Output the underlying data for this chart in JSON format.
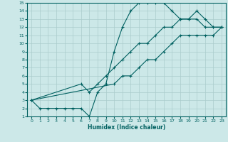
{
  "xlabel": "Humidex (Indice chaleur)",
  "xlim": [
    -0.5,
    23.5
  ],
  "ylim": [
    1,
    15
  ],
  "xticks": [
    0,
    1,
    2,
    3,
    4,
    5,
    6,
    7,
    8,
    9,
    10,
    11,
    12,
    13,
    14,
    15,
    16,
    17,
    18,
    19,
    20,
    21,
    22,
    23
  ],
  "yticks": [
    1,
    2,
    3,
    4,
    5,
    6,
    7,
    8,
    9,
    10,
    11,
    12,
    13,
    14,
    15
  ],
  "bg_color": "#cce8e8",
  "grid_color": "#aacccc",
  "line_color": "#006060",
  "line1_x": [
    0,
    1,
    2,
    3,
    4,
    5,
    6,
    7,
    8,
    9,
    10,
    11,
    12,
    13,
    14,
    15,
    16,
    17,
    18,
    19,
    20,
    21,
    22,
    23
  ],
  "line1_y": [
    3,
    2,
    2,
    2,
    2,
    2,
    2,
    1,
    4,
    5,
    9,
    12,
    14,
    15,
    15,
    15,
    15,
    14,
    13,
    13,
    14,
    13,
    12,
    12
  ],
  "line2_x": [
    0,
    6,
    7,
    8,
    9,
    10,
    11,
    12,
    13,
    14,
    15,
    16,
    17,
    18,
    19,
    20,
    21,
    22,
    23
  ],
  "line2_y": [
    3,
    5,
    4,
    5,
    6,
    7,
    8,
    9,
    10,
    10,
    11,
    12,
    12,
    13,
    13,
    13,
    12,
    12,
    12
  ],
  "line3_x": [
    0,
    10,
    11,
    12,
    13,
    14,
    15,
    16,
    17,
    18,
    19,
    20,
    21,
    22,
    23
  ],
  "line3_y": [
    3,
    5,
    6,
    6,
    7,
    8,
    8,
    9,
    10,
    11,
    11,
    11,
    11,
    11,
    12
  ]
}
